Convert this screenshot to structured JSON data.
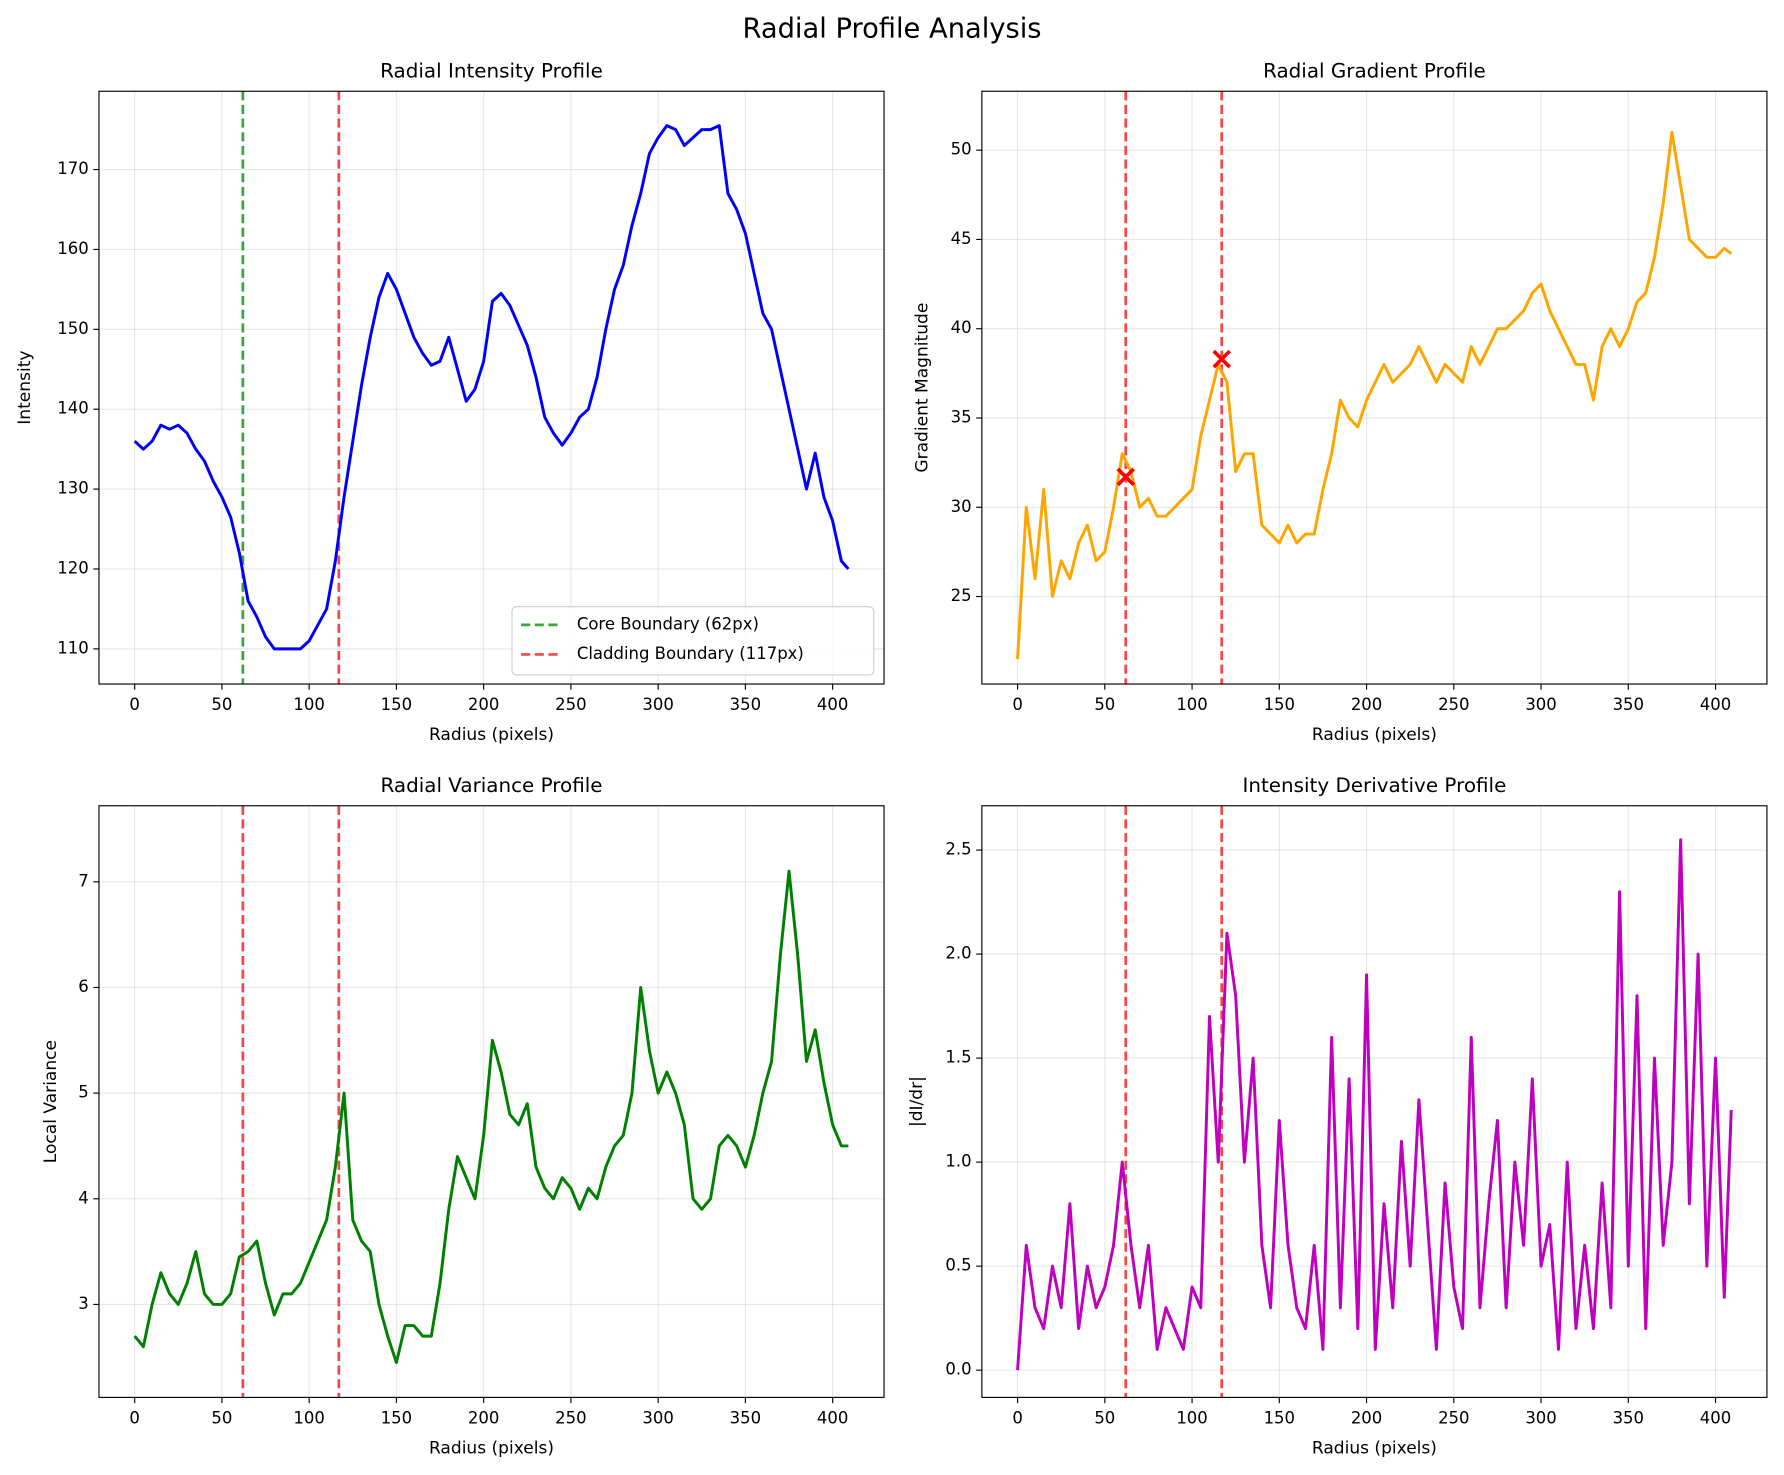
{
  "title": "Radial Profile Analysis",
  "chart_data": [
    {
      "type": "line",
      "title": "Radial Intensity Profile",
      "xlabel": "Radius (pixels)",
      "ylabel": "Intensity",
      "xlim": [
        -20.45,
        429.45
      ],
      "xticks": [
        0,
        50,
        100,
        150,
        200,
        250,
        300,
        350,
        400
      ],
      "ylim": [
        105.6,
        179.8
      ],
      "yticks": [
        110,
        120,
        130,
        140,
        150,
        160,
        170
      ],
      "grid": true,
      "legend": "lower right",
      "x": [
        0,
        5,
        10,
        15,
        20,
        25,
        30,
        35,
        40,
        45,
        50,
        55,
        60,
        65,
        70,
        75,
        80,
        85,
        90,
        95,
        100,
        105,
        110,
        115,
        120,
        125,
        130,
        135,
        140,
        145,
        150,
        155,
        160,
        165,
        170,
        175,
        180,
        185,
        190,
        195,
        200,
        205,
        210,
        215,
        220,
        225,
        230,
        235,
        240,
        245,
        250,
        255,
        260,
        265,
        270,
        275,
        280,
        285,
        290,
        295,
        300,
        305,
        310,
        315,
        320,
        325,
        330,
        335,
        340,
        345,
        350,
        355,
        360,
        365,
        370,
        375,
        380,
        385,
        390,
        395,
        400,
        405,
        409
      ],
      "series": [
        {
          "color": "#0000ff",
          "values": [
            136,
            135,
            136,
            138,
            137.5,
            138,
            137,
            135,
            133.5,
            131,
            129,
            126.5,
            122,
            116,
            114,
            111.5,
            110,
            110,
            110,
            110,
            111,
            113,
            115,
            121,
            129,
            136,
            143,
            149,
            154,
            157,
            155,
            152,
            149,
            147,
            145.5,
            146,
            149,
            145,
            141,
            142.5,
            146,
            153.5,
            154.5,
            153,
            150.5,
            148,
            144,
            139,
            137,
            135.5,
            137,
            139,
            140,
            144,
            150,
            155,
            158,
            163,
            167,
            172,
            174,
            175.5,
            175,
            173,
            174,
            175,
            175,
            175.5,
            167,
            165,
            162,
            157,
            152,
            150,
            145,
            140,
            135,
            130,
            134.5,
            129,
            126,
            121,
            120
          ]
        }
      ],
      "vlines": [
        {
          "x": 62,
          "name": "Core Boundary (62px)",
          "color": "#3aa63a"
        },
        {
          "x": 117,
          "name": "Cladding Boundary (117px)",
          "color": "#f44848"
        }
      ]
    },
    {
      "type": "line",
      "title": "Radial Gradient Profile",
      "xlabel": "Radius (pixels)",
      "ylabel": "Gradient Magnitude",
      "xlim": [
        -20.45,
        429.45
      ],
      "xticks": [
        0,
        50,
        100,
        150,
        200,
        250,
        300,
        350,
        400
      ],
      "ylim": [
        20.1,
        53.3
      ],
      "yticks": [
        25,
        30,
        35,
        40,
        45,
        50
      ],
      "grid": true,
      "x": [
        0,
        5,
        10,
        15,
        20,
        25,
        30,
        35,
        40,
        45,
        50,
        55,
        60,
        65,
        70,
        75,
        80,
        85,
        90,
        95,
        100,
        105,
        110,
        115,
        120,
        125,
        130,
        135,
        140,
        145,
        150,
        155,
        160,
        165,
        170,
        175,
        180,
        185,
        190,
        195,
        200,
        205,
        210,
        215,
        220,
        225,
        230,
        235,
        240,
        245,
        250,
        255,
        260,
        265,
        270,
        275,
        280,
        285,
        290,
        295,
        300,
        305,
        310,
        315,
        320,
        325,
        330,
        335,
        340,
        345,
        350,
        355,
        360,
        365,
        370,
        375,
        380,
        385,
        390,
        395,
        400,
        405,
        409
      ],
      "series": [
        {
          "color": "#ffa500",
          "values": [
            21.5,
            30,
            26,
            31,
            25,
            27,
            26,
            28,
            29,
            27,
            27.5,
            30,
            33,
            32,
            30,
            30.5,
            29.5,
            29.5,
            30,
            30.5,
            31,
            34,
            36,
            38,
            37,
            32,
            33,
            33,
            29,
            28.5,
            28,
            29,
            28,
            28.5,
            28.5,
            31,
            33,
            36,
            35,
            34.5,
            36,
            37,
            38,
            37,
            37.5,
            38,
            39,
            38,
            37,
            38,
            37.5,
            37,
            39,
            38,
            39,
            40,
            40,
            40.5,
            41,
            42,
            42.5,
            41,
            40,
            39,
            38,
            38,
            36,
            39,
            40,
            39,
            40,
            41.5,
            42,
            44,
            47,
            51,
            48,
            45,
            44.5,
            44,
            44,
            44.5,
            44.2
          ]
        }
      ],
      "markers": {
        "x": [
          62,
          117
        ],
        "values": [
          31.7,
          38.3
        ],
        "color": "#ff0000"
      },
      "vlines": [
        {
          "x": 62,
          "color": "#f44848"
        },
        {
          "x": 117,
          "color": "#f44848"
        }
      ]
    },
    {
      "type": "line",
      "title": "Radial Variance Profile",
      "xlabel": "Radius (pixels)",
      "ylabel": "Local Variance",
      "xlim": [
        -20.45,
        429.45
      ],
      "xticks": [
        0,
        50,
        100,
        150,
        200,
        250,
        300,
        350,
        400
      ],
      "ylim": [
        2.12,
        7.72
      ],
      "yticks": [
        3,
        4,
        5,
        6,
        7
      ],
      "grid": true,
      "x": [
        0,
        5,
        10,
        15,
        20,
        25,
        30,
        35,
        40,
        45,
        50,
        55,
        60,
        65,
        70,
        75,
        80,
        85,
        90,
        95,
        100,
        105,
        110,
        115,
        120,
        125,
        130,
        135,
        140,
        145,
        150,
        155,
        160,
        165,
        170,
        175,
        180,
        185,
        190,
        195,
        200,
        205,
        210,
        215,
        220,
        225,
        230,
        235,
        240,
        245,
        250,
        255,
        260,
        265,
        270,
        275,
        280,
        285,
        290,
        295,
        300,
        305,
        310,
        315,
        320,
        325,
        330,
        335,
        340,
        345,
        350,
        355,
        360,
        365,
        370,
        375,
        380,
        385,
        390,
        395,
        400,
        405,
        409
      ],
      "series": [
        {
          "color": "#008000",
          "values": [
            2.7,
            2.6,
            3.0,
            3.3,
            3.1,
            3.0,
            3.2,
            3.5,
            3.1,
            3.0,
            3.0,
            3.1,
            3.45,
            3.5,
            3.6,
            3.2,
            2.9,
            3.1,
            3.1,
            3.2,
            3.4,
            3.6,
            3.8,
            4.3,
            5.0,
            3.8,
            3.6,
            3.5,
            3.0,
            2.7,
            2.45,
            2.8,
            2.8,
            2.7,
            2.7,
            3.2,
            3.9,
            4.4,
            4.2,
            4.0,
            4.6,
            5.5,
            5.2,
            4.8,
            4.7,
            4.9,
            4.3,
            4.1,
            4.0,
            4.2,
            4.1,
            3.9,
            4.1,
            4.0,
            4.3,
            4.5,
            4.6,
            5.0,
            6.0,
            5.4,
            5.0,
            5.2,
            5.0,
            4.7,
            4.0,
            3.9,
            4.0,
            4.5,
            4.6,
            4.5,
            4.3,
            4.6,
            5.0,
            5.3,
            6.3,
            7.1,
            6.3,
            5.3,
            5.6,
            5.1,
            4.7,
            4.5,
            4.5
          ]
        }
      ],
      "vlines": [
        {
          "x": 62,
          "color": "#f44848"
        },
        {
          "x": 117,
          "color": "#f44848"
        }
      ]
    },
    {
      "type": "line",
      "title": "Intensity Derivative Profile",
      "xlabel": "Radius (pixels)",
      "ylabel": "|dI/dr|",
      "xlim": [
        -20.45,
        429.45
      ],
      "xticks": [
        0,
        50,
        100,
        150,
        200,
        250,
        300,
        350,
        400
      ],
      "ylim": [
        -0.131,
        2.713
      ],
      "yticks": [
        {
          "value": 0,
          "label": "0.0"
        },
        0.5,
        {
          "value": 1,
          "label": "1.0"
        },
        1.5,
        {
          "value": 2,
          "label": "2.0"
        },
        2.5
      ],
      "grid": true,
      "x": [
        0,
        5,
        10,
        15,
        20,
        25,
        30,
        35,
        40,
        45,
        50,
        55,
        60,
        65,
        70,
        75,
        80,
        85,
        90,
        95,
        100,
        105,
        110,
        115,
        120,
        125,
        130,
        135,
        140,
        145,
        150,
        155,
        160,
        165,
        170,
        175,
        180,
        185,
        190,
        195,
        200,
        205,
        210,
        215,
        220,
        225,
        230,
        235,
        240,
        245,
        250,
        255,
        260,
        265,
        270,
        275,
        280,
        285,
        290,
        295,
        300,
        305,
        310,
        315,
        320,
        325,
        330,
        335,
        340,
        345,
        350,
        355,
        360,
        365,
        370,
        375,
        380,
        385,
        390,
        395,
        400,
        405,
        409
      ],
      "series": [
        {
          "color": "#bf00bf",
          "values": [
            0,
            0.6,
            0.3,
            0.2,
            0.5,
            0.3,
            0.8,
            0.2,
            0.5,
            0.3,
            0.4,
            0.6,
            1.0,
            0.6,
            0.3,
            0.6,
            0.1,
            0.3,
            0.2,
            0.1,
            0.4,
            0.3,
            1.7,
            1.0,
            2.1,
            1.8,
            1.0,
            1.5,
            0.6,
            0.3,
            1.2,
            0.6,
            0.3,
            0.2,
            0.6,
            0.1,
            1.6,
            0.3,
            1.4,
            0.2,
            1.9,
            0.1,
            0.8,
            0.3,
            1.1,
            0.5,
            1.3,
            0.7,
            0.1,
            0.9,
            0.4,
            0.2,
            1.6,
            0.3,
            0.8,
            1.2,
            0.3,
            1.0,
            0.6,
            1.4,
            0.5,
            0.7,
            0.1,
            1.0,
            0.2,
            0.6,
            0.2,
            0.9,
            0.3,
            2.3,
            0.5,
            1.8,
            0.2,
            1.5,
            0.6,
            1.0,
            2.55,
            0.8,
            2.0,
            0.5,
            1.5,
            0.35,
            1.25
          ]
        }
      ],
      "vlines": [
        {
          "x": 62,
          "color": "#f44848"
        },
        {
          "x": 117,
          "color": "#f44848"
        }
      ]
    }
  ]
}
